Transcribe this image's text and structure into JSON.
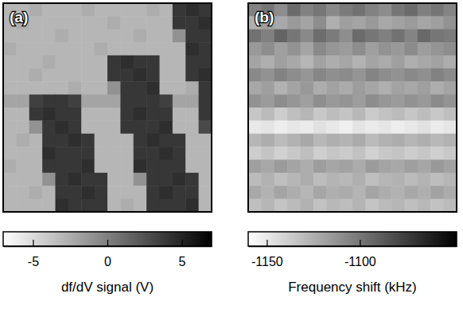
{
  "chart_data": [
    {
      "type": "heatmap",
      "title": "(a)",
      "tick_labels": false,
      "colorbar": {
        "label": "df/dV signal (V)",
        "range": [
          -7,
          7
        ],
        "ticks": [
          -5,
          0,
          5
        ]
      },
      "cells": [
        [
          -3,
          -3,
          -2.5,
          -3,
          -3,
          -3,
          -2.5,
          -3,
          -3,
          -3,
          -3,
          -2.5,
          -3,
          4,
          4.5,
          4
        ],
        [
          -3,
          -2.5,
          -3,
          -3,
          -3,
          -3,
          -3,
          -3,
          -2.5,
          -3,
          -3,
          -3,
          -3,
          4,
          4,
          4.5
        ],
        [
          -3,
          -3,
          -3,
          -3,
          -2.5,
          -3,
          -3,
          -3,
          -3,
          -3,
          -2.5,
          -3,
          -3,
          -1,
          4,
          4
        ],
        [
          -2.5,
          -3,
          -3,
          -3,
          -3,
          -3,
          -3,
          -2.5,
          -3,
          -3,
          -3,
          -3,
          -3,
          -3,
          4.5,
          4
        ],
        [
          -3,
          -3,
          -3,
          -2.5,
          -3,
          -3,
          -3,
          -3,
          4,
          4.5,
          4,
          4,
          -3,
          -3,
          4,
          4
        ],
        [
          -3,
          -3,
          -2.5,
          -3,
          -3,
          -3,
          -3,
          -3,
          4,
          4,
          4.5,
          4,
          -3,
          -3,
          4,
          4.5
        ],
        [
          -3,
          -3,
          -3,
          -3,
          -3,
          -2.5,
          -3,
          -3,
          -1,
          4,
          4,
          4.5,
          -3,
          -3,
          -2.5,
          4
        ],
        [
          -2,
          -2,
          3.5,
          4,
          4,
          3.5,
          -2,
          -2,
          -2,
          4,
          4,
          4,
          3.5,
          -2,
          -2,
          4
        ],
        [
          -3,
          -3,
          4,
          4.5,
          4,
          4,
          -3,
          -3,
          -3,
          4,
          4.5,
          4,
          4,
          -3,
          -3,
          4
        ],
        [
          -3,
          -3,
          -1,
          4,
          4.5,
          4,
          -3,
          -3,
          -3,
          4,
          4,
          4,
          4.5,
          -3,
          -3,
          3
        ],
        [
          -3,
          -2.5,
          -3,
          4,
          4,
          4.5,
          4,
          -3,
          -3,
          -3,
          4,
          4.5,
          4,
          4,
          -3,
          -3
        ],
        [
          -3,
          -3,
          -3,
          4.5,
          4,
          4,
          4,
          -3,
          -3,
          -3,
          4,
          4,
          4.5,
          4,
          -3,
          -3
        ],
        [
          -2.5,
          -3,
          -3,
          4,
          4,
          4,
          4.5,
          -3,
          -3,
          -3,
          4.5,
          4,
          4,
          4,
          -3,
          -3
        ],
        [
          -3,
          -3,
          -3,
          -1,
          4,
          4.5,
          4,
          4,
          -3,
          -3,
          -1,
          4,
          4,
          4.5,
          4,
          -3
        ],
        [
          -3,
          -3,
          -2.5,
          -3,
          4,
          4,
          4.5,
          4,
          -3,
          -3,
          -3,
          4,
          4.5,
          4,
          4,
          -3
        ],
        [
          -3,
          -3,
          -3,
          -3,
          4.5,
          4,
          4,
          4,
          -3,
          -2.5,
          -3,
          4,
          4,
          4,
          4.5,
          -3
        ]
      ]
    },
    {
      "type": "heatmap",
      "title": "(b)",
      "tick_labels": false,
      "colorbar": {
        "label": "Frequency shift (kHz)",
        "range": [
          -1160,
          -1048
        ],
        "ticks": [
          -1150,
          -1100
        ]
      },
      "cells": [
        [
          -1105,
          -1100,
          -1110,
          -1095,
          -1105,
          -1100,
          -1108,
          -1102,
          -1098,
          -1105,
          -1110,
          -1100,
          -1095,
          -1104,
          -1100,
          -1106
        ],
        [
          -1125,
          -1118,
          -1122,
          -1115,
          -1120,
          -1110,
          -1125,
          -1118,
          -1120,
          -1115,
          -1122,
          -1119,
          -1116,
          -1121,
          -1118,
          -1112
        ],
        [
          -1098,
          -1104,
          -1092,
          -1100,
          -1108,
          -1096,
          -1102,
          -1110,
          -1095,
          -1100,
          -1104,
          -1098,
          -1106,
          -1094,
          -1100,
          -1102
        ],
        [
          -1115,
          -1110,
          -1118,
          -1112,
          -1120,
          -1108,
          -1114,
          -1116,
          -1110,
          -1118,
          -1112,
          -1115,
          -1109,
          -1117,
          -1113,
          -1110
        ],
        [
          -1120,
          -1125,
          -1118,
          -1122,
          -1128,
          -1119,
          -1124,
          -1121,
          -1126,
          -1120,
          -1123,
          -1118,
          -1125,
          -1122,
          -1119,
          -1124
        ],
        [
          -1108,
          -1112,
          -1105,
          -1110,
          -1114,
          -1107,
          -1111,
          -1109,
          -1113,
          -1106,
          -1110,
          -1112,
          -1108,
          -1111,
          -1105,
          -1109
        ],
        [
          -1122,
          -1118,
          -1126,
          -1120,
          -1115,
          -1124,
          -1119,
          -1123,
          -1117,
          -1121,
          -1125,
          -1119,
          -1122,
          -1118,
          -1124,
          -1120
        ],
        [
          -1112,
          -1116,
          -1110,
          -1114,
          -1118,
          -1111,
          -1115,
          -1113,
          -1117,
          -1110,
          -1114,
          -1116,
          -1112,
          -1115,
          -1109,
          -1113
        ],
        [
          -1135,
          -1130,
          -1138,
          -1132,
          -1128,
          -1136,
          -1131,
          -1134,
          -1129,
          -1137,
          -1133,
          -1130,
          -1135,
          -1131,
          -1136,
          -1132
        ],
        [
          -1150,
          -1148,
          -1152,
          -1149,
          -1151,
          -1147,
          -1150,
          -1153,
          -1148,
          -1151,
          -1149,
          -1152,
          -1150,
          -1147,
          -1151,
          -1149
        ],
        [
          -1128,
          -1124,
          -1130,
          -1126,
          -1122,
          -1129,
          -1125,
          -1127,
          -1123,
          -1130,
          -1126,
          -1124,
          -1128,
          -1125,
          -1129,
          -1126
        ],
        [
          -1138,
          -1134,
          -1140,
          -1136,
          -1132,
          -1139,
          -1135,
          -1137,
          -1133,
          -1140,
          -1136,
          -1134,
          -1138,
          -1135,
          -1139,
          -1136
        ],
        [
          -1118,
          -1122,
          -1116,
          -1120,
          -1124,
          -1117,
          -1121,
          -1119,
          -1123,
          -1116,
          -1120,
          -1122,
          -1118,
          -1121,
          -1115,
          -1119
        ],
        [
          -1130,
          -1126,
          -1132,
          -1128,
          -1124,
          -1131,
          -1127,
          -1129,
          -1125,
          -1132,
          -1128,
          -1126,
          -1130,
          -1127,
          -1131,
          -1128
        ],
        [
          -1122,
          -1126,
          -1120,
          -1124,
          -1128,
          -1121,
          -1125,
          -1123,
          -1127,
          -1120,
          -1124,
          -1126,
          -1122,
          -1125,
          -1119,
          -1123
        ],
        [
          -1132,
          -1128,
          -1134,
          -1130,
          -1126,
          -1133,
          -1129,
          -1131,
          -1127,
          -1134,
          -1130,
          -1128,
          -1132,
          -1129,
          -1133,
          -1130
        ]
      ]
    }
  ]
}
